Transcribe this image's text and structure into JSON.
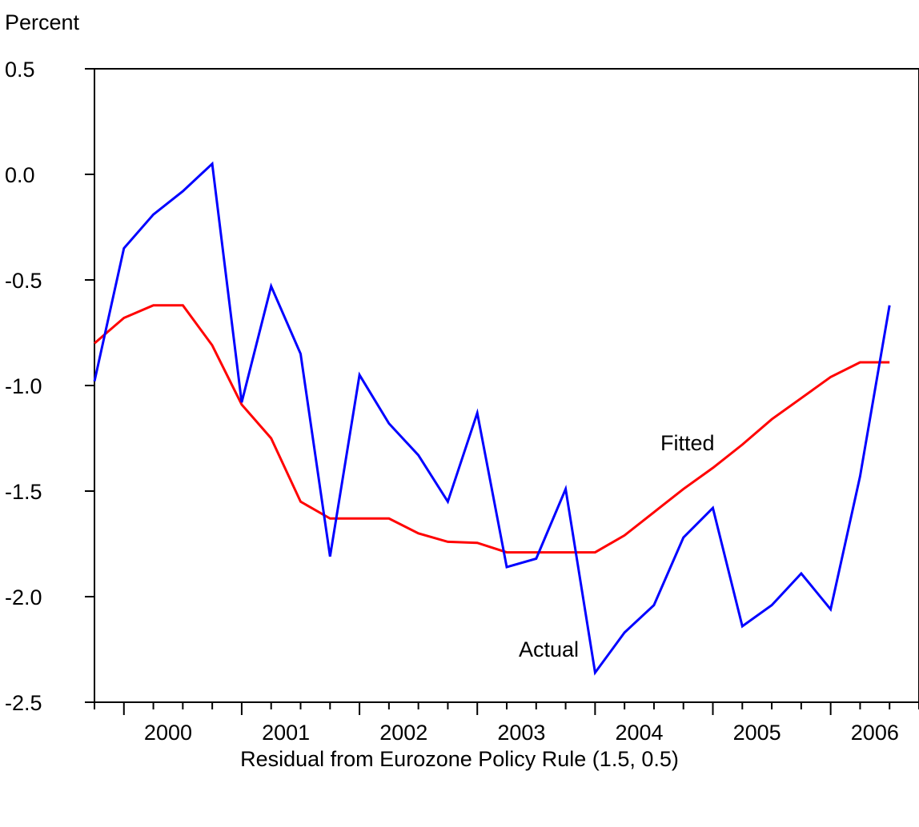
{
  "chart_data": {
    "type": "line",
    "ylabel": "Percent",
    "caption": "Residual from Eurozone Policy Rule (1.5, 0.5)",
    "ylim": [
      -2.5,
      0.5
    ],
    "yticks": [
      "0.5",
      "0.0",
      "-0.5",
      "-1.0",
      "-1.5",
      "-2.0",
      "-2.5"
    ],
    "xlim": [
      1999.75,
      2006.75
    ],
    "year_labels": [
      "2000",
      "2001",
      "2002",
      "2003",
      "2004",
      "2005",
      "2006"
    ],
    "x": [
      1999.75,
      2000.0,
      2000.25,
      2000.5,
      2000.75,
      2001.0,
      2001.25,
      2001.5,
      2001.75,
      2002.0,
      2002.25,
      2002.5,
      2002.75,
      2003.0,
      2003.25,
      2003.5,
      2003.75,
      2004.0,
      2004.25,
      2004.5,
      2004.75,
      2005.0,
      2005.25,
      2005.5,
      2005.75,
      2006.0,
      2006.25,
      2006.5
    ],
    "series": [
      {
        "name": "Actual",
        "color": "#0000ff",
        "values": [
          -0.98,
          -0.35,
          -0.19,
          -0.08,
          0.05,
          -1.08,
          -0.53,
          -0.85,
          -1.81,
          -0.95,
          -1.18,
          -1.33,
          -1.55,
          -1.13,
          -1.86,
          -1.82,
          -1.49,
          -2.36,
          -2.17,
          -2.04,
          -1.72,
          -1.58,
          -2.14,
          -2.04,
          -1.89,
          -2.06,
          -1.43,
          -0.62
        ]
      },
      {
        "name": "Fitted",
        "color": "#ff0000",
        "values": [
          -0.8,
          -0.68,
          -0.62,
          -0.62,
          -0.81,
          -1.09,
          -1.25,
          -1.55,
          -1.63,
          -1.63,
          -1.63,
          -1.7,
          -1.74,
          -1.745,
          -1.79,
          -1.79,
          -1.79,
          -1.79,
          -1.71,
          -1.6,
          -1.49,
          -1.39,
          -1.28,
          -1.16,
          -1.06,
          -0.96,
          -0.89,
          -0.89
        ]
      }
    ],
    "series_labels": {
      "fitted": "Fitted",
      "actual": "Actual"
    }
  }
}
